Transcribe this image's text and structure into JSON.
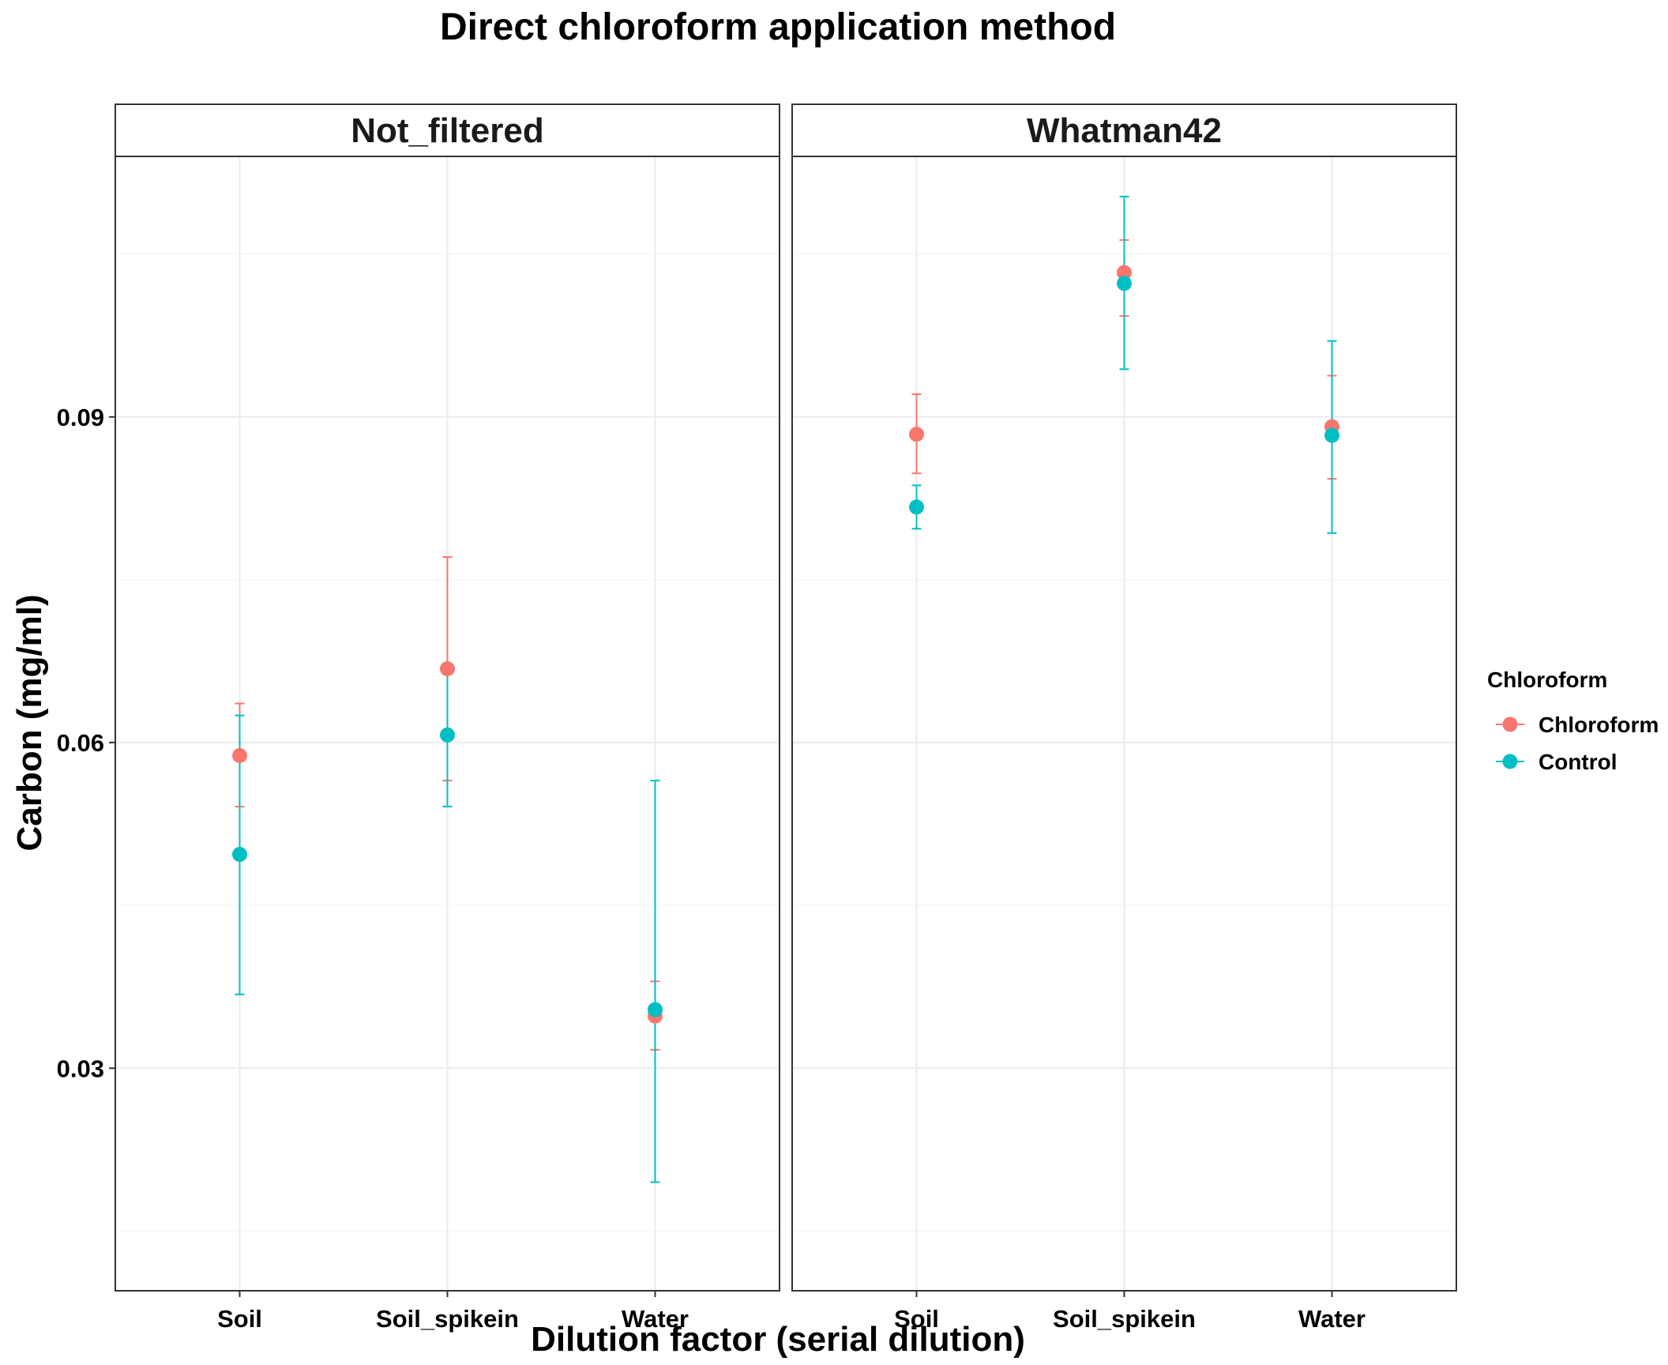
{
  "chart_data": {
    "type": "scatter",
    "title": "Direct chloroform application method",
    "xlabel": "Dilution factor (serial dilution)",
    "ylabel": "Carbon (mg/ml)",
    "ylim": [
      0.0095,
      0.114
    ],
    "yticks": [
      0.03,
      0.06,
      0.09
    ],
    "ytick_labels": [
      "0.03",
      "0.06",
      "0.09"
    ],
    "categories": [
      "Soil",
      "Soil_spikein",
      "Water"
    ],
    "grid": true,
    "legend": {
      "title": "Chloroform",
      "position": "right",
      "entries": [
        "Chloroform",
        "Control"
      ]
    },
    "colors": {
      "Chloroform": "#F8766D",
      "Control": "#00BFC4"
    },
    "panels": [
      {
        "label": "Not_filtered",
        "series": [
          {
            "name": "Chloroform",
            "values": [
              0.0588,
              0.0668,
              0.0348
            ],
            "lower": [
              0.0541,
              0.0565,
              0.0317
            ],
            "upper": [
              0.0636,
              0.0771,
              0.038
            ]
          },
          {
            "name": "Control",
            "values": [
              0.0497,
              0.0607,
              0.0354
            ],
            "lower": [
              0.0368,
              0.0541,
              0.0195
            ],
            "upper": [
              0.0625,
              0.0672,
              0.0565
            ]
          }
        ]
      },
      {
        "label": "Whatman42",
        "series": [
          {
            "name": "Chloroform",
            "values": [
              0.0884,
              0.1033,
              0.0891
            ],
            "lower": [
              0.0848,
              0.0993,
              0.0843
            ],
            "upper": [
              0.0921,
              0.1063,
              0.0938
            ]
          },
          {
            "name": "Control",
            "values": [
              0.0817,
              0.1023,
              0.0883
            ],
            "lower": [
              0.0797,
              0.0944,
              0.0793
            ],
            "upper": [
              0.0837,
              0.1103,
              0.097
            ]
          }
        ]
      }
    ]
  }
}
